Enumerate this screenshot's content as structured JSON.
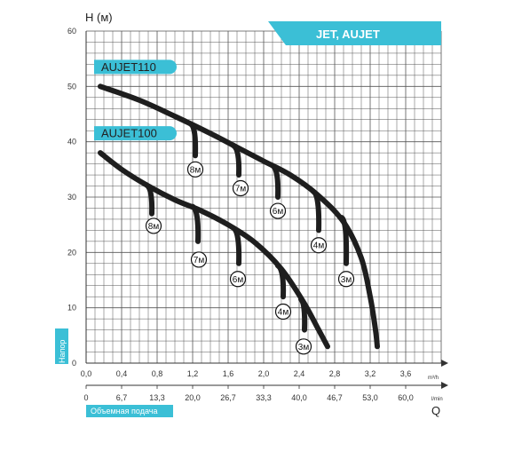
{
  "chart_data": {
    "type": "line",
    "title": "JET, AUJET",
    "ylabel": "H (м)",
    "y_side_label": "Напор",
    "xlabel_primary_unit": "m³/h",
    "xlabel_secondary_unit": "l/min",
    "xlabel_secondary": "Объемная подача",
    "x_symbol": "Q",
    "ylim": [
      0,
      60
    ],
    "xlim": [
      0,
      4.0
    ],
    "y_ticks": [
      "0",
      "10",
      "20",
      "30",
      "40",
      "50",
      "60"
    ],
    "x_ticks_m3h": [
      "0,0",
      "0,4",
      "0,8",
      "1,2",
      "1,6",
      "2,0",
      "2,4",
      "2,8",
      "3,2",
      "3,6"
    ],
    "x_ticks_lmin": [
      "0",
      "6,7",
      "13,3",
      "20,0",
      "26,7",
      "33,3",
      "40,0",
      "46,7",
      "53,0",
      "60,0"
    ],
    "grid": true,
    "colors": {
      "accent": "#3bbfd6",
      "curve": "#1e1e1e",
      "grid": "#555555"
    },
    "series": [
      {
        "name": "AUJET110",
        "points": [
          [
            0.16,
            50.0
          ],
          [
            0.6,
            47.5
          ],
          [
            1.0,
            44.6
          ],
          [
            1.4,
            41.5
          ],
          [
            1.7,
            39.0
          ],
          [
            2.0,
            36.5
          ],
          [
            2.3,
            34.0
          ],
          [
            2.6,
            30.5
          ],
          [
            2.9,
            25.5
          ],
          [
            3.1,
            19.0
          ],
          [
            3.2,
            12.0
          ],
          [
            3.26,
            6.0
          ],
          [
            3.28,
            3.0
          ]
        ],
        "suction_branches": [
          {
            "label": "8м",
            "x": 1.18,
            "y_top": 43.2,
            "x_end": 1.23,
            "y_end": 37.5
          },
          {
            "label": "7м",
            "x": 1.66,
            "y_top": 39.3,
            "x_end": 1.72,
            "y_end": 34.0
          },
          {
            "label": "6м",
            "x": 2.1,
            "y_top": 35.7,
            "x_end": 2.16,
            "y_end": 30.0
          },
          {
            "label": "4м",
            "x": 2.56,
            "y_top": 31.0,
            "x_end": 2.62,
            "y_end": 24.0
          },
          {
            "label": "3м",
            "x": 2.88,
            "y_top": 26.3,
            "x_end": 2.93,
            "y_end": 18.0
          }
        ]
      },
      {
        "name": "AUJET100",
        "points": [
          [
            0.16,
            38.0
          ],
          [
            0.4,
            35.0
          ],
          [
            0.7,
            32.0
          ],
          [
            1.0,
            29.5
          ],
          [
            1.3,
            27.5
          ],
          [
            1.6,
            25.0
          ],
          [
            1.9,
            21.8
          ],
          [
            2.2,
            17.0
          ],
          [
            2.45,
            11.0
          ],
          [
            2.62,
            6.0
          ],
          [
            2.72,
            3.0
          ]
        ],
        "suction_branches": [
          {
            "label": "8м",
            "x": 0.68,
            "y_top": 32.2,
            "x_end": 0.74,
            "y_end": 27.0
          },
          {
            "label": "7м",
            "x": 1.2,
            "y_top": 28.3,
            "x_end": 1.26,
            "y_end": 22.0
          },
          {
            "label": "6м",
            "x": 1.66,
            "y_top": 24.4,
            "x_end": 1.72,
            "y_end": 18.0
          },
          {
            "label": "4м",
            "x": 2.16,
            "y_top": 17.6,
            "x_end": 2.22,
            "y_end": 12.0
          },
          {
            "label": "3м",
            "x": 2.42,
            "y_top": 11.5,
            "x_end": 2.46,
            "y_end": 6.0
          }
        ]
      }
    ],
    "branch_label_positions": {
      "AUJET110": [
        [
          1.23,
          35.0
        ],
        [
          1.74,
          31.6
        ],
        [
          2.16,
          27.5
        ],
        [
          2.62,
          21.3
        ],
        [
          2.93,
          15.2
        ]
      ],
      "AUJET100": [
        [
          0.76,
          24.8
        ],
        [
          1.27,
          18.7
        ],
        [
          1.71,
          15.2
        ],
        [
          2.22,
          9.3
        ],
        [
          2.45,
          3.0
        ]
      ]
    }
  }
}
